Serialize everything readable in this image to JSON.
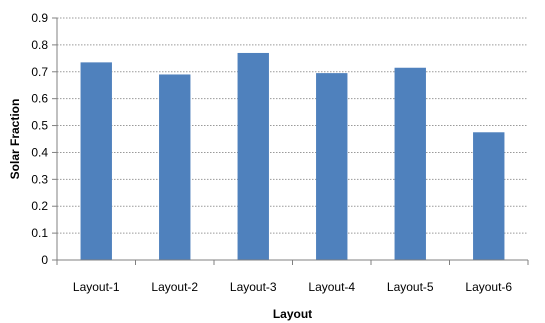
{
  "chart_data": {
    "type": "bar",
    "title": "",
    "xlabel": "Layout",
    "ylabel": "Solar Fraction",
    "categories": [
      "Layout-1",
      "Layout-2",
      "Layout-3",
      "Layout-4",
      "Layout-5",
      "Layout-6"
    ],
    "values": [
      0.735,
      0.69,
      0.77,
      0.695,
      0.715,
      0.475
    ],
    "ylim": [
      0,
      0.9
    ],
    "yticks": [
      "0",
      "0.1",
      "0.2",
      "0.3",
      "0.4",
      "0.5",
      "0.6",
      "0.7",
      "0.8",
      "0.9"
    ],
    "grid": true,
    "legend": "none",
    "bar_color": "#4F81BD",
    "grid_color": "#9a9a9a"
  }
}
